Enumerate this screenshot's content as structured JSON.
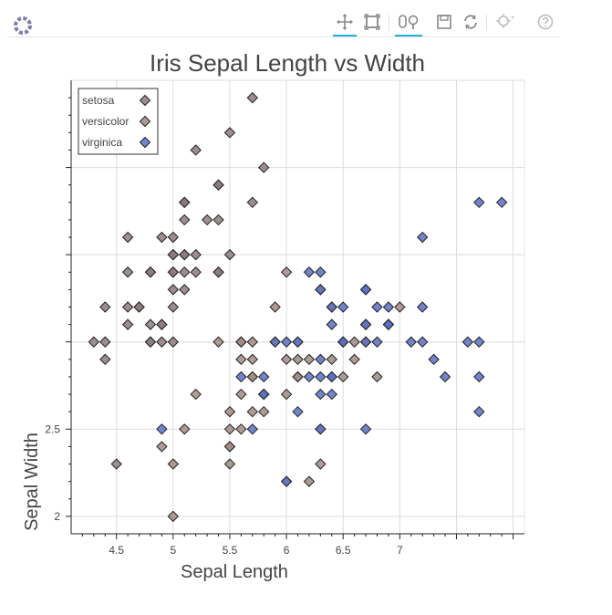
{
  "toolbar": {
    "logo_icon": "bokeh-logo-icon",
    "tools": [
      {
        "name": "pan-tool",
        "icon": "pan-icon",
        "active": true
      },
      {
        "name": "box-zoom-tool",
        "icon": "box-zoom-icon",
        "active": false
      },
      {
        "name": "wheel-zoom-tool",
        "icon": "wheel-zoom-icon",
        "active": true
      },
      {
        "name": "save-tool",
        "icon": "save-icon",
        "active": false
      },
      {
        "name": "reset-tool",
        "icon": "reset-icon",
        "active": false
      },
      {
        "name": "hover-tool",
        "icon": "hover-icon",
        "active": false
      },
      {
        "name": "help-tool",
        "icon": "help-icon",
        "active": false
      }
    ],
    "accent_color": "#26aae1"
  },
  "chart_data": {
    "type": "scatter",
    "title": "Iris Sepal Length vs Width",
    "xlabel": "Sepal Length",
    "ylabel": "Sepal Width",
    "xlim": [
      4.1,
      8.1
    ],
    "ylim": [
      1.9,
      4.5
    ],
    "x_ticks": [
      4.5,
      5,
      5.5,
      6,
      6.5,
      7
    ],
    "x_tick_labels": [
      "4.5",
      "5",
      "5.5",
      "6",
      "6.5",
      "7"
    ],
    "y_ticks": [
      2,
      2.5
    ],
    "y_tick_labels": [
      "2",
      "2.5"
    ],
    "grid": true,
    "legend_position": "top-left",
    "marker": "diamond",
    "series": [
      {
        "name": "setosa",
        "color": "#8b7b7b",
        "points": [
          [
            5.1,
            3.5
          ],
          [
            4.9,
            3.0
          ],
          [
            4.7,
            3.2
          ],
          [
            4.6,
            3.1
          ],
          [
            5.0,
            3.6
          ],
          [
            5.4,
            3.9
          ],
          [
            4.6,
            3.4
          ],
          [
            5.0,
            3.4
          ],
          [
            4.4,
            2.9
          ],
          [
            4.9,
            3.1
          ],
          [
            5.4,
            3.7
          ],
          [
            4.8,
            3.4
          ],
          [
            4.8,
            3.0
          ],
          [
            4.3,
            3.0
          ],
          [
            5.8,
            4.0
          ],
          [
            5.7,
            4.4
          ],
          [
            5.4,
            3.9
          ],
          [
            5.1,
            3.5
          ],
          [
            5.7,
            3.8
          ],
          [
            5.1,
            3.8
          ],
          [
            5.4,
            3.4
          ],
          [
            5.1,
            3.7
          ],
          [
            4.6,
            3.6
          ],
          [
            5.1,
            3.3
          ],
          [
            4.8,
            3.4
          ],
          [
            5.0,
            3.0
          ],
          [
            5.0,
            3.4
          ],
          [
            5.2,
            3.5
          ],
          [
            5.2,
            3.4
          ],
          [
            4.7,
            3.2
          ],
          [
            4.8,
            3.1
          ],
          [
            5.4,
            3.4
          ],
          [
            5.2,
            4.1
          ],
          [
            5.5,
            4.2
          ],
          [
            4.9,
            3.1
          ],
          [
            5.0,
            3.2
          ],
          [
            5.5,
            3.5
          ],
          [
            4.9,
            3.6
          ],
          [
            4.4,
            3.0
          ],
          [
            5.1,
            3.4
          ],
          [
            5.0,
            3.5
          ],
          [
            4.5,
            2.3
          ],
          [
            4.4,
            3.2
          ],
          [
            5.0,
            3.5
          ],
          [
            5.1,
            3.8
          ],
          [
            4.8,
            3.0
          ],
          [
            5.1,
            3.8
          ],
          [
            4.6,
            3.2
          ],
          [
            5.3,
            3.7
          ],
          [
            5.0,
            3.3
          ]
        ]
      },
      {
        "name": "versicolor",
        "color": "#a08a84",
        "points": [
          [
            7.0,
            3.2
          ],
          [
            6.4,
            3.2
          ],
          [
            6.9,
            3.1
          ],
          [
            5.5,
            2.3
          ],
          [
            6.5,
            2.8
          ],
          [
            5.7,
            2.8
          ],
          [
            6.3,
            3.3
          ],
          [
            4.9,
            2.4
          ],
          [
            6.6,
            2.9
          ],
          [
            5.2,
            2.7
          ],
          [
            5.0,
            2.0
          ],
          [
            5.9,
            3.0
          ],
          [
            6.0,
            2.2
          ],
          [
            6.1,
            2.9
          ],
          [
            5.6,
            2.9
          ],
          [
            6.7,
            3.1
          ],
          [
            5.6,
            3.0
          ],
          [
            5.8,
            2.7
          ],
          [
            6.2,
            2.2
          ],
          [
            5.6,
            2.5
          ],
          [
            5.9,
            3.2
          ],
          [
            6.1,
            2.8
          ],
          [
            6.3,
            2.5
          ],
          [
            6.1,
            2.8
          ],
          [
            6.4,
            2.9
          ],
          [
            6.6,
            3.0
          ],
          [
            6.8,
            2.8
          ],
          [
            6.7,
            3.0
          ],
          [
            6.0,
            2.9
          ],
          [
            5.7,
            2.6
          ],
          [
            5.5,
            2.4
          ],
          [
            5.5,
            2.4
          ],
          [
            5.8,
            2.7
          ],
          [
            6.0,
            2.7
          ],
          [
            5.4,
            3.0
          ],
          [
            6.0,
            3.4
          ],
          [
            6.7,
            3.1
          ],
          [
            6.3,
            2.3
          ],
          [
            5.6,
            3.0
          ],
          [
            5.5,
            2.5
          ],
          [
            5.5,
            2.6
          ],
          [
            6.1,
            3.0
          ],
          [
            5.8,
            2.6
          ],
          [
            5.0,
            2.3
          ],
          [
            5.6,
            2.7
          ],
          [
            5.7,
            3.0
          ],
          [
            5.7,
            2.9
          ],
          [
            6.2,
            2.9
          ],
          [
            5.1,
            2.5
          ],
          [
            5.7,
            2.8
          ]
        ]
      },
      {
        "name": "virginica",
        "color": "#5b6ec4",
        "points": [
          [
            6.3,
            3.3
          ],
          [
            5.8,
            2.7
          ],
          [
            7.1,
            3.0
          ],
          [
            6.3,
            2.9
          ],
          [
            6.5,
            3.0
          ],
          [
            7.6,
            3.0
          ],
          [
            4.9,
            2.5
          ],
          [
            7.3,
            2.9
          ],
          [
            6.7,
            2.5
          ],
          [
            7.2,
            3.6
          ],
          [
            6.5,
            3.2
          ],
          [
            6.4,
            2.7
          ],
          [
            6.8,
            3.0
          ],
          [
            5.7,
            2.5
          ],
          [
            5.8,
            2.8
          ],
          [
            6.4,
            3.2
          ],
          [
            6.5,
            3.0
          ],
          [
            7.7,
            3.8
          ],
          [
            7.7,
            2.6
          ],
          [
            6.0,
            2.2
          ],
          [
            6.9,
            3.2
          ],
          [
            5.6,
            2.8
          ],
          [
            7.7,
            2.8
          ],
          [
            6.3,
            2.7
          ],
          [
            6.7,
            3.3
          ],
          [
            7.2,
            3.2
          ],
          [
            6.2,
            2.8
          ],
          [
            6.1,
            3.0
          ],
          [
            6.4,
            2.8
          ],
          [
            7.2,
            3.0
          ],
          [
            7.4,
            2.8
          ],
          [
            7.9,
            3.8
          ],
          [
            6.4,
            2.8
          ],
          [
            6.3,
            2.8
          ],
          [
            6.1,
            2.6
          ],
          [
            7.7,
            3.0
          ],
          [
            6.3,
            3.4
          ],
          [
            6.4,
            3.1
          ],
          [
            6.0,
            3.0
          ],
          [
            6.9,
            3.1
          ],
          [
            6.7,
            3.1
          ],
          [
            6.9,
            3.1
          ],
          [
            5.8,
            2.7
          ],
          [
            6.8,
            3.2
          ],
          [
            6.7,
            3.3
          ],
          [
            6.7,
            3.0
          ],
          [
            6.3,
            2.5
          ],
          [
            6.5,
            3.0
          ],
          [
            6.2,
            3.4
          ],
          [
            5.9,
            3.0
          ]
        ]
      }
    ]
  }
}
